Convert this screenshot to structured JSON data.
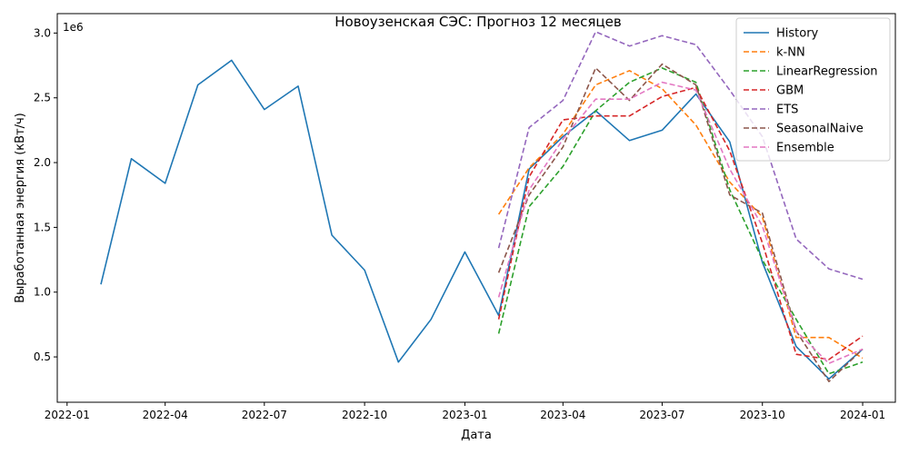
{
  "chart_data": {
    "type": "line",
    "title": "Новоузенская СЭС: Прогноз 12 месяцев",
    "xlabel": "Дата",
    "ylabel": "Выработанная энергия (кВт/ч)",
    "y_multiplier_label": "1e6",
    "y_scale": 1000000,
    "xlim": [
      "2021-12-23",
      "2024-01-31"
    ],
    "ylim": [
      150000,
      3150000
    ],
    "x_ticks": [
      {
        "date": "2022-01-01",
        "label": "2022-01"
      },
      {
        "date": "2022-04-01",
        "label": "2022-04"
      },
      {
        "date": "2022-07-01",
        "label": "2022-07"
      },
      {
        "date": "2022-10-01",
        "label": "2022-10"
      },
      {
        "date": "2023-01-01",
        "label": "2023-01"
      },
      {
        "date": "2023-04-01",
        "label": "2023-04"
      },
      {
        "date": "2023-07-01",
        "label": "2023-07"
      },
      {
        "date": "2023-10-01",
        "label": "2023-10"
      },
      {
        "date": "2024-01-01",
        "label": "2024-01"
      }
    ],
    "y_ticks": [
      {
        "value": 500000,
        "label": "0.5"
      },
      {
        "value": 1000000,
        "label": "1.0"
      },
      {
        "value": 1500000,
        "label": "1.5"
      },
      {
        "value": 2000000,
        "label": "2.0"
      },
      {
        "value": 2500000,
        "label": "2.5"
      },
      {
        "value": 3000000,
        "label": "3.0"
      }
    ],
    "grid": false,
    "legend_position": "top-right",
    "series": [
      {
        "name": "History",
        "color": "#1f77b4",
        "dash": "solid",
        "x": [
          "2022-02-01",
          "2022-03-01",
          "2022-04-01",
          "2022-05-01",
          "2022-06-01",
          "2022-07-01",
          "2022-08-01",
          "2022-09-01",
          "2022-10-01",
          "2022-11-01",
          "2022-12-01",
          "2023-01-01",
          "2023-02-01",
          "2023-03-01",
          "2023-04-01",
          "2023-05-01",
          "2023-06-01",
          "2023-07-01",
          "2023-08-01",
          "2023-09-01",
          "2023-10-01",
          "2023-11-01",
          "2023-12-01",
          "2024-01-01"
        ],
        "y": [
          1060000,
          2030000,
          1840000,
          2600000,
          2790000,
          2410000,
          2590000,
          1440000,
          1170000,
          460000,
          790000,
          1310000,
          820000,
          1950000,
          2200000,
          2400000,
          2170000,
          2250000,
          2530000,
          2160000,
          1230000,
          580000,
          330000,
          560000
        ]
      },
      {
        "name": "k-NN",
        "color": "#ff7f0e",
        "dash": "dashed",
        "x": [
          "2023-02-01",
          "2023-03-01",
          "2023-04-01",
          "2023-05-01",
          "2023-06-01",
          "2023-07-01",
          "2023-08-01",
          "2023-09-01",
          "2023-10-01",
          "2023-11-01",
          "2023-12-01",
          "2024-01-01"
        ],
        "y": [
          1600000,
          1960000,
          2220000,
          2600000,
          2710000,
          2570000,
          2290000,
          1850000,
          1580000,
          650000,
          650000,
          490000
        ]
      },
      {
        "name": "LinearRegression",
        "color": "#2ca02c",
        "dash": "dashed",
        "x": [
          "2023-02-01",
          "2023-03-01",
          "2023-04-01",
          "2023-05-01",
          "2023-06-01",
          "2023-07-01",
          "2023-08-01",
          "2023-09-01",
          "2023-10-01",
          "2023-11-01",
          "2023-12-01",
          "2024-01-01"
        ],
        "y": [
          680000,
          1660000,
          1970000,
          2400000,
          2620000,
          2730000,
          2620000,
          1790000,
          1250000,
          790000,
          370000,
          460000
        ]
      },
      {
        "name": "GBM",
        "color": "#d62728",
        "dash": "dashed",
        "x": [
          "2023-02-01",
          "2023-03-01",
          "2023-04-01",
          "2023-05-01",
          "2023-06-01",
          "2023-07-01",
          "2023-08-01",
          "2023-09-01",
          "2023-10-01",
          "2023-11-01",
          "2023-12-01",
          "2024-01-01"
        ],
        "y": [
          790000,
          1890000,
          2330000,
          2360000,
          2360000,
          2510000,
          2580000,
          2090000,
          1380000,
          520000,
          480000,
          660000
        ]
      },
      {
        "name": "ETS",
        "color": "#9467bd",
        "dash": "dashed",
        "x": [
          "2023-02-01",
          "2023-03-01",
          "2023-04-01",
          "2023-05-01",
          "2023-06-01",
          "2023-07-01",
          "2023-08-01",
          "2023-09-01",
          "2023-10-01",
          "2023-11-01",
          "2023-12-01",
          "2024-01-01"
        ],
        "y": [
          1340000,
          2270000,
          2480000,
          3010000,
          2900000,
          2980000,
          2910000,
          2560000,
          2200000,
          1410000,
          1180000,
          1100000
        ]
      },
      {
        "name": "SeasonalNaive",
        "color": "#8c564b",
        "dash": "dashed",
        "x": [
          "2023-02-01",
          "2023-03-01",
          "2023-04-01",
          "2023-05-01",
          "2023-06-01",
          "2023-07-01",
          "2023-08-01",
          "2023-09-01",
          "2023-10-01",
          "2023-11-01",
          "2023-12-01",
          "2024-01-01"
        ],
        "y": [
          1150000,
          1750000,
          2120000,
          2730000,
          2480000,
          2760000,
          2600000,
          1750000,
          1610000,
          700000,
          310000,
          560000
        ]
      },
      {
        "name": "Ensemble",
        "color": "#e377c2",
        "dash": "dashed",
        "x": [
          "2023-02-01",
          "2023-03-01",
          "2023-04-01",
          "2023-05-01",
          "2023-06-01",
          "2023-07-01",
          "2023-08-01",
          "2023-09-01",
          "2023-10-01",
          "2023-11-01",
          "2023-12-01",
          "2024-01-01"
        ],
        "y": [
          960000,
          1790000,
          2180000,
          2490000,
          2490000,
          2620000,
          2560000,
          1950000,
          1510000,
          700000,
          450000,
          560000
        ]
      }
    ]
  }
}
